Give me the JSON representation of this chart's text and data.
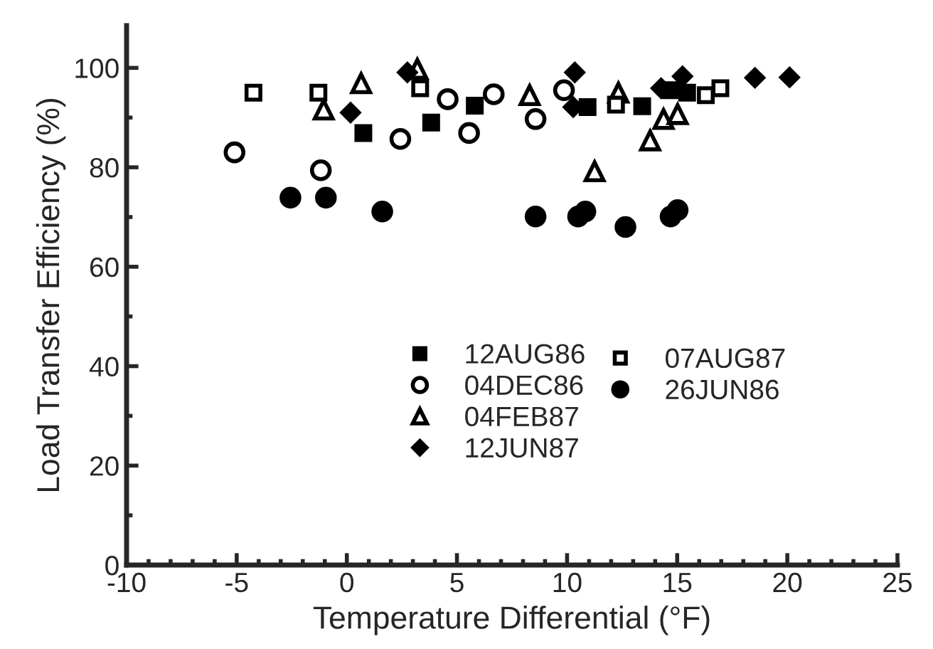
{
  "chart_data": {
    "type": "scatter",
    "xlabel": "Temperature Differential (°F)",
    "ylabel": "Load Transfer Efficiency (%)",
    "xlim": [
      -10,
      25
    ],
    "xticks": [
      -10,
      -5,
      0,
      5,
      10,
      15,
      20,
      25
    ],
    "ylim": [
      0,
      108.5
    ],
    "yticks": [
      0,
      20,
      40,
      60,
      80,
      100
    ],
    "grid": false,
    "legend": "center",
    "series": [
      {
        "name": "12AUG86",
        "color": "#000000",
        "marker": "square",
        "x": [
          0.75,
          3.83,
          5.81,
          10.93,
          13.41,
          14.7,
          15.45
        ],
        "values": [
          86.9,
          89,
          92.4,
          92.1,
          92.3,
          95.5,
          95
        ]
      },
      {
        "name": "04DEC86",
        "color": "#ffffff",
        "marker": "circle",
        "x": [
          -5.1,
          -1.18,
          2.43,
          4.58,
          5.55,
          6.67,
          8.57,
          9.86
        ],
        "values": [
          83,
          79.4,
          85.7,
          93.7,
          86.9,
          94.7,
          89.7,
          95.5
        ]
      },
      {
        "name": "04FEB87",
        "color": "#ffffff",
        "marker": "triangle",
        "x": [
          -1.05,
          0.65,
          3.2,
          8.3,
          11.25,
          12.33,
          13.77,
          14.38,
          15.02
        ],
        "values": [
          91.6,
          96.9,
          99.8,
          94.5,
          79.2,
          95,
          85.4,
          89.7,
          90.7
        ]
      },
      {
        "name": "12JUN87",
        "color": "#000000",
        "marker": "diamond",
        "x": [
          0.17,
          2.75,
          10.35,
          10.28,
          14.27,
          15.24,
          18.53,
          20.1
        ],
        "values": [
          91,
          99.1,
          99.1,
          92.1,
          95.9,
          98.3,
          98,
          98.1
        ]
      },
      {
        "name": "07AUG87",
        "color": "#ffffff",
        "marker": "square",
        "x": [
          -4.24,
          -1.29,
          3.33,
          12.22,
          16.3,
          16.96
        ],
        "values": [
          95,
          95,
          95.9,
          92.6,
          94.5,
          95.9
        ]
      },
      {
        "name": "26JUN86",
        "color": "#000000",
        "marker": "circle",
        "x": [
          -2.56,
          -0.95,
          1.61,
          8.57,
          10.5,
          10.83,
          12.65,
          14.7,
          15.02
        ],
        "values": [
          73.9,
          73.9,
          71.1,
          70.1,
          70.1,
          71.1,
          68,
          70.1,
          71.4
        ]
      }
    ]
  }
}
